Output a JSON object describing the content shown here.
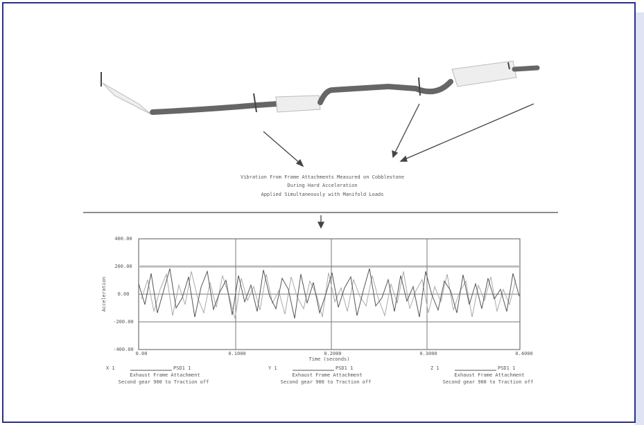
{
  "caption": {
    "lines": [
      "Vibration From Frame Attachments Measured on Cobblestone",
      "During Hard Acceleration",
      "Applied Simultaneously with Manifold Loads"
    ]
  },
  "plot": {
    "y_axis_title": "Acceleration",
    "x_axis_title": "Time (seconds)",
    "y_tick_labels": [
      "400.00",
      "200.00",
      "0.00",
      "-200.00",
      "-400.00"
    ],
    "x_tick_labels": [
      "0.00",
      "0.1000",
      "0.2000",
      "0.3000",
      "0.4000"
    ],
    "legend": [
      {
        "id": "X 1",
        "name": "PSD1 1",
        "part": "Exhaust Frame Attachment",
        "condition": "Second gear 900 to Traction off"
      },
      {
        "id": "Y 1",
        "name": "PSD1 1",
        "part": "Exhaust Frame Attachment",
        "condition": "Second gear 900 to Traction off"
      },
      {
        "id": "Z 1",
        "name": "PSD1 1",
        "part": "Exhaust Frame Attachment",
        "condition": "Second gear 900 to Traction off"
      }
    ]
  }
}
